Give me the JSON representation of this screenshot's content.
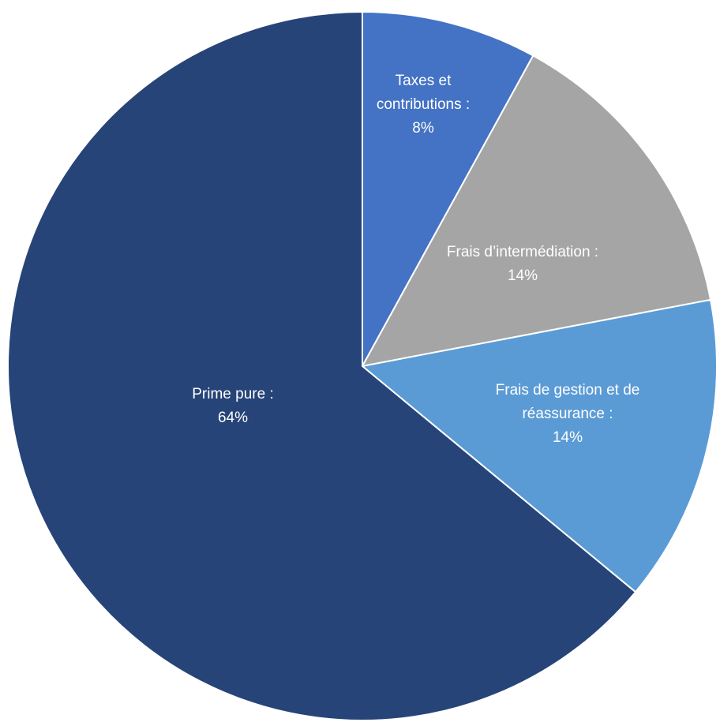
{
  "chart_data": {
    "type": "pie",
    "categories": [
      "Taxes et contributions :",
      "Frais d’intermédiation :",
      "Frais de gestion et de réassurance :",
      "Prime pure :"
    ],
    "values": [
      8,
      14,
      14,
      64
    ],
    "value_labels": [
      "8%",
      "14%",
      "14%",
      "64%"
    ],
    "colors": [
      "#4472c4",
      "#a5a5a5",
      "#5b9bd5",
      "#264478"
    ]
  }
}
